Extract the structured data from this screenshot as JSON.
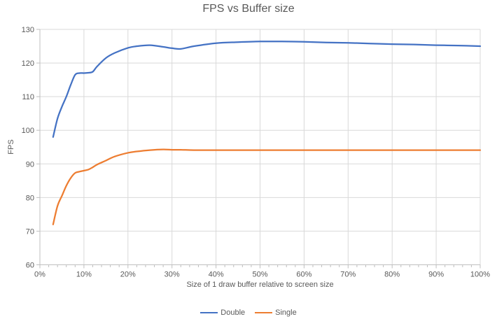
{
  "chart": {
    "title": "FPS vs Buffer size",
    "x_axis_title": "Size of 1 draw buffer relative to screen size",
    "y_axis_title": "FPS"
  },
  "colors": {
    "series_double": "#4472C4",
    "series_single": "#ED7D31",
    "gridline": "#D9D9D9",
    "axis_line": "#BFBFBF",
    "text": "#595959",
    "background": "#FFFFFF"
  },
  "chart_data": {
    "type": "line",
    "title": "FPS vs Buffer size",
    "xlabel": "Size of 1 draw buffer relative to screen size",
    "ylabel": "FPS",
    "xlim": [
      0,
      100
    ],
    "ylim": [
      60,
      130
    ],
    "x_ticks": [
      0,
      10,
      20,
      30,
      40,
      50,
      60,
      70,
      80,
      90,
      100
    ],
    "x_tick_labels": [
      "0%",
      "10%",
      "20%",
      "30%",
      "40%",
      "50%",
      "60%",
      "70%",
      "80%",
      "90%",
      "100%"
    ],
    "x_minor_tick_step": 2,
    "y_ticks": [
      60,
      70,
      80,
      90,
      100,
      110,
      120,
      130
    ],
    "grid": true,
    "smooth_lines": true,
    "legend_position": "bottom",
    "x": [
      3,
      4,
      5,
      6,
      7,
      8,
      9,
      10,
      11,
      12,
      13,
      15,
      17,
      20,
      22,
      25,
      28,
      30,
      32,
      35,
      40,
      45,
      50,
      55,
      60,
      65,
      70,
      75,
      80,
      85,
      90,
      95,
      100
    ],
    "series": [
      {
        "name": "Double",
        "color": "#4472C4",
        "values": [
          98,
          103.5,
          107,
          110,
          113.5,
          116.5,
          117,
          117,
          117.1,
          117.4,
          119,
          121.5,
          123,
          124.5,
          125,
          125.3,
          124.8,
          124.4,
          124.2,
          125,
          125.9,
          126.2,
          126.4,
          126.4,
          126.3,
          126.1,
          126,
          125.8,
          125.6,
          125.5,
          125.3,
          125.2,
          125
        ]
      },
      {
        "name": "Single",
        "color": "#ED7D31",
        "values": [
          72,
          77.5,
          80.5,
          83.5,
          85.8,
          87.3,
          87.7,
          88,
          88.3,
          89,
          89.8,
          91,
          92.2,
          93.3,
          93.7,
          94.1,
          94.3,
          94.2,
          94.2,
          94.1,
          94.1,
          94.1,
          94.1,
          94.1,
          94.1,
          94.1,
          94.1,
          94.1,
          94.1,
          94.1,
          94.1,
          94.1,
          94.1
        ]
      }
    ]
  }
}
